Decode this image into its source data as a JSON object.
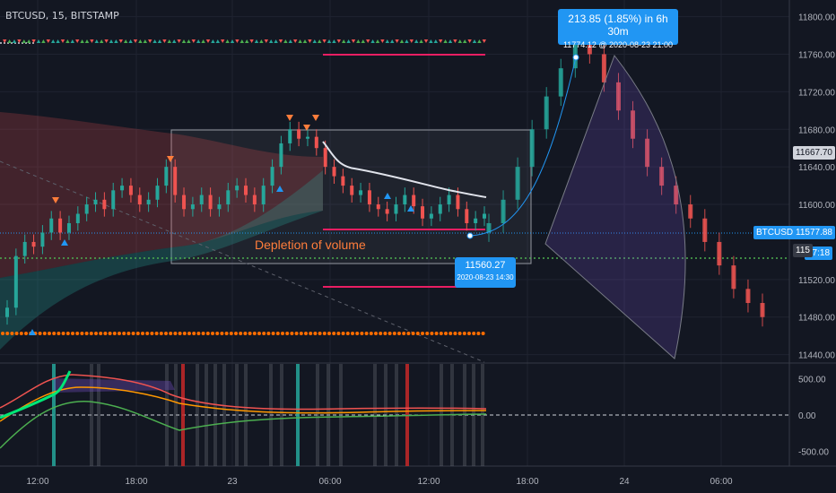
{
  "symbol_title": "BTCUSD, 15, BITSTAMP",
  "annotation_text": "Depletion of volume",
  "price_axis": {
    "ticks": [
      "11800.00",
      "11760.00",
      "11720.00",
      "11680.00",
      "11640.00",
      "11600.00",
      "11520.00",
      "11480.00",
      "11440.00"
    ],
    "ylim": [
      11432,
      11812
    ]
  },
  "osc_axis": {
    "ticks": [
      "500.00",
      "0.00",
      "-500.00"
    ],
    "ylim": [
      -700,
      700
    ]
  },
  "time_labels": [
    "12:00",
    "18:00",
    "23",
    "06:00",
    "12:00",
    "18:00",
    "24",
    "06:00"
  ],
  "labels": {
    "symbol_tag": "BTCUSD",
    "last_price": "11577.88",
    "countdown": "07:18",
    "level_tag": "11667.70",
    "partial_tag": "115"
  },
  "measure_callout": {
    "line1": "213.85 (1.85%) in 6h 30m",
    "line2": "11774.12 @ 2020-08-23  21:00"
  },
  "low_callout": {
    "line1": "11560.27",
    "line2": "2020-08-23 14:30"
  },
  "colors": {
    "background": "#131722",
    "up": "#26a69a",
    "down": "#ef5350",
    "callout": "#2196f3",
    "orange": "#ff6d00",
    "magenta": "#e91e63"
  },
  "chart_data": {
    "type": "candlestick",
    "title": "BTCUSD, 15, BITSTAMP",
    "x_range_time": [
      "2020-08-22 09:00",
      "2020-08-24 09:00"
    ],
    "ylim": [
      11432,
      11812
    ],
    "closes_history": [
      11490,
      11545,
      11560,
      11555,
      11570,
      11585,
      11570,
      11580,
      11590,
      11600,
      11605,
      11595,
      11615,
      11620,
      11610,
      11600,
      11605,
      11620,
      11640,
      11610,
      11595,
      11600,
      11610,
      11595,
      11600,
      11615,
      11620,
      11610,
      11600,
      11620,
      11640,
      11665,
      11680,
      11670,
      11672,
      11660,
      11640,
      11630,
      11620,
      11610,
      11615,
      11600,
      11595,
      11590,
      11600,
      11610,
      11598,
      11585,
      11590,
      11600,
      11610,
      11595,
      11580,
      11585,
      11590
    ],
    "closes_projection": [
      11580,
      11605,
      11640,
      11680,
      11715,
      11745,
      11774,
      11760,
      11730,
      11700,
      11670,
      11640,
      11620,
      11600,
      11585,
      11560,
      11535,
      11510,
      11495,
      11480
    ],
    "key_points": [
      {
        "label": "low",
        "value": 11560.27,
        "time": "2020-08-23 14:30"
      },
      {
        "label": "high",
        "value": 11774.12,
        "time": "2020-08-23 21:00"
      }
    ],
    "last_price": 11577.88,
    "oscillator_ylim": [
      -700,
      700
    ]
  }
}
